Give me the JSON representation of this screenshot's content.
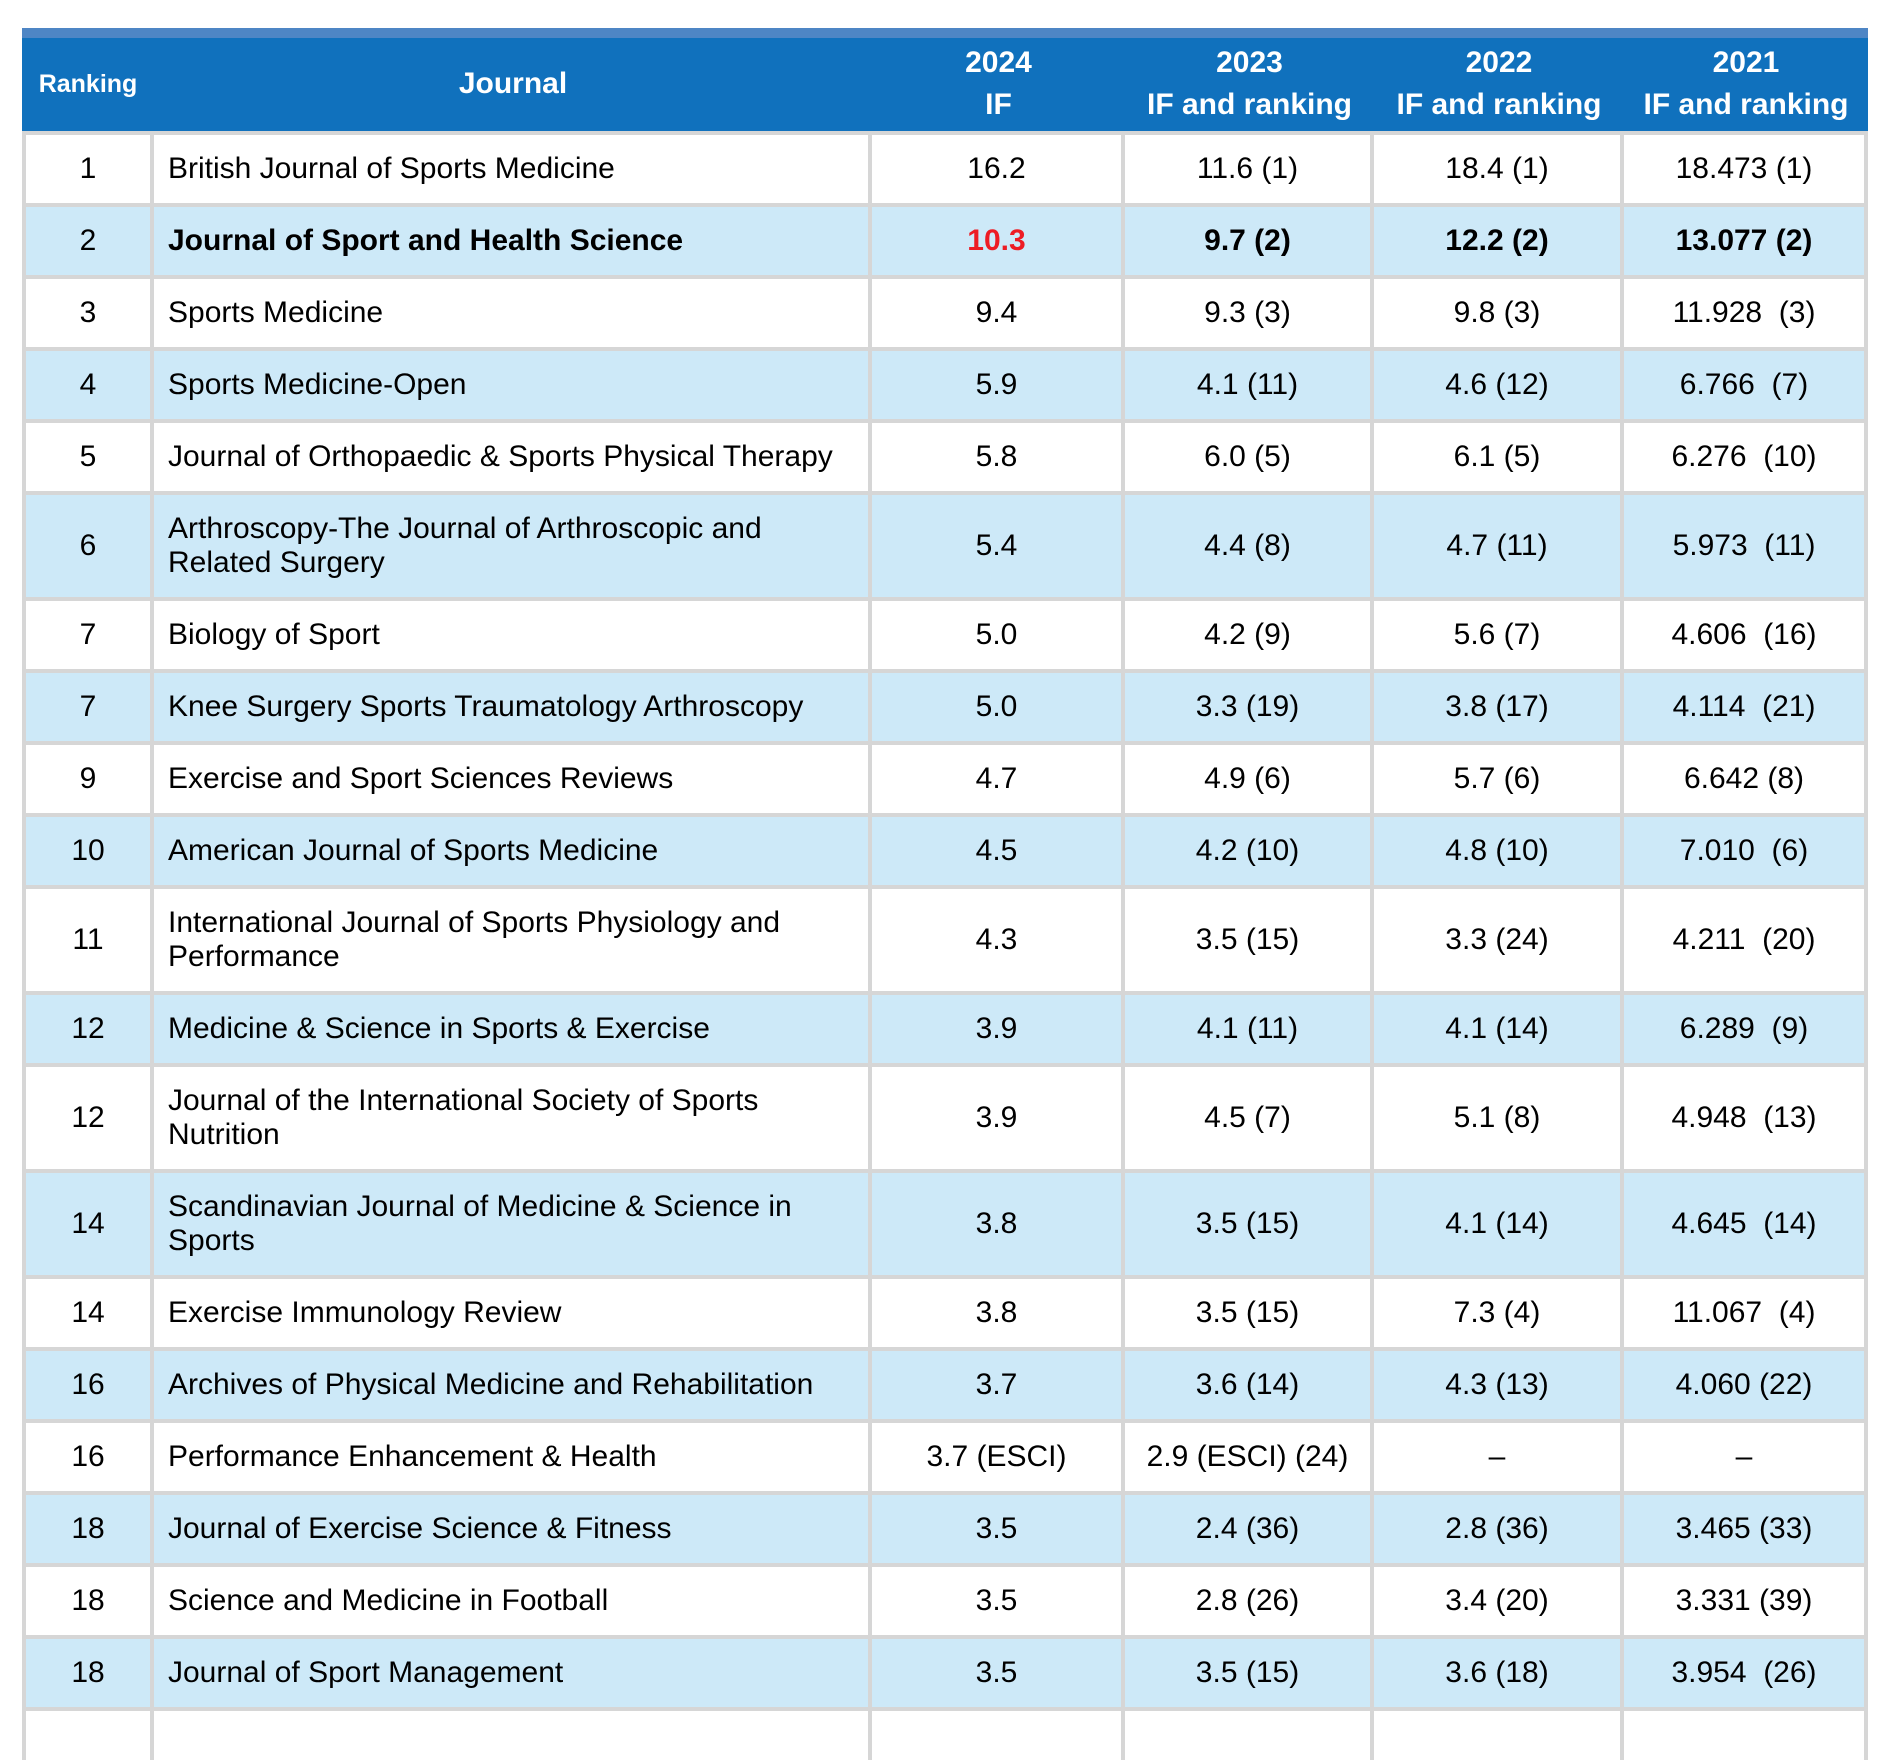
{
  "table": {
    "columns": [
      {
        "line1": "Ranking",
        "line2": ""
      },
      {
        "line1": "Journal",
        "line2": ""
      },
      {
        "line1": "2024",
        "line2": "IF"
      },
      {
        "line1": "2023",
        "line2": "IF and ranking"
      },
      {
        "line1": "2022",
        "line2": "IF and ranking"
      },
      {
        "line1": "2021",
        "line2": "IF and ranking"
      }
    ],
    "rows": [
      {
        "ranking": "1",
        "journal": "British Journal of Sports Medicine",
        "if2024": "16.2",
        "if2023": "11.6 (1)",
        "if2022": "18.4 (1)",
        "if2021": "18.473 (1)",
        "accent": false
      },
      {
        "ranking": "2",
        "journal": "Journal of Sport and Health Science",
        "if2024": "10.3",
        "if2023": "9.7 (2)",
        "if2022": "12.2 (2)",
        "if2021": "13.077 (2)",
        "accent": true
      },
      {
        "ranking": "3",
        "journal": "Sports Medicine",
        "if2024": "9.4",
        "if2023": "9.3 (3)",
        "if2022": "9.8 (3)",
        "if2021": "11.928  (3)",
        "accent": false
      },
      {
        "ranking": "4",
        "journal": "Sports Medicine-Open",
        "if2024": "5.9",
        "if2023": "4.1 (11)",
        "if2022": "4.6 (12)",
        "if2021": "6.766  (7)",
        "accent": false
      },
      {
        "ranking": "5",
        "journal": "Journal of Orthopaedic & Sports Physical Therapy",
        "if2024": "5.8",
        "if2023": "6.0 (5)",
        "if2022": "6.1 (5)",
        "if2021": "6.276  (10)",
        "accent": false
      },
      {
        "ranking": "6",
        "journal": "Arthroscopy-The Journal of Arthroscopic and Related Surgery",
        "if2024": "5.4",
        "if2023": "4.4 (8)",
        "if2022": "4.7 (11)",
        "if2021": "5.973  (11)",
        "accent": false
      },
      {
        "ranking": "7",
        "journal": "Biology of Sport",
        "if2024": "5.0",
        "if2023": "4.2 (9)",
        "if2022": "5.6 (7)",
        "if2021": "4.606  (16)",
        "accent": false
      },
      {
        "ranking": "7",
        "journal": "Knee Surgery Sports Traumatology Arthroscopy",
        "if2024": "5.0",
        "if2023": "3.3 (19)",
        "if2022": "3.8 (17)",
        "if2021": "4.114  (21)",
        "accent": false
      },
      {
        "ranking": "9",
        "journal": "Exercise and Sport Sciences Reviews",
        "if2024": "4.7",
        "if2023": "4.9 (6)",
        "if2022": "5.7 (6)",
        "if2021": "6.642 (8)",
        "accent": false
      },
      {
        "ranking": "10",
        "journal": "American Journal of Sports Medicine",
        "if2024": "4.5",
        "if2023": "4.2 (10)",
        "if2022": "4.8 (10)",
        "if2021": "7.010  (6)",
        "accent": false
      },
      {
        "ranking": "11",
        "journal": "International Journal of Sports Physiology and Performance",
        "if2024": "4.3",
        "if2023": "3.5 (15)",
        "if2022": "3.3 (24)",
        "if2021": "4.211  (20)",
        "accent": false
      },
      {
        "ranking": "12",
        "journal": "Medicine & Science in Sports & Exercise",
        "if2024": "3.9",
        "if2023": "4.1 (11)",
        "if2022": "4.1 (14)",
        "if2021": "6.289  (9)",
        "accent": false
      },
      {
        "ranking": "12",
        "journal": "Journal of the International Society of Sports Nutrition",
        "if2024": "3.9",
        "if2023": "4.5 (7)",
        "if2022": "5.1 (8)",
        "if2021": "4.948  (13)",
        "accent": false
      },
      {
        "ranking": "14",
        "journal": "Scandinavian Journal of Medicine & Science in Sports",
        "if2024": "3.8",
        "if2023": "3.5 (15)",
        "if2022": "4.1 (14)",
        "if2021": "4.645  (14)",
        "accent": false
      },
      {
        "ranking": "14",
        "journal": "Exercise Immunology Review",
        "if2024": "3.8",
        "if2023": "3.5 (15)",
        "if2022": "7.3 (4)",
        "if2021": "11.067  (4)",
        "accent": false
      },
      {
        "ranking": "16",
        "journal": "Archives of Physical Medicine and Rehabilitation",
        "if2024": "3.7",
        "if2023": "3.6 (14)",
        "if2022": "4.3 (13)",
        "if2021": "4.060 (22)",
        "accent": false
      },
      {
        "ranking": "16",
        "journal": "Performance Enhancement & Health",
        "if2024": "3.7 (ESCI)",
        "if2023": "2.9 (ESCI) (24)",
        "if2022": "–",
        "if2021": "–",
        "accent": false
      },
      {
        "ranking": "18",
        "journal": "Journal of Exercise Science & Fitness",
        "if2024": "3.5",
        "if2023": "2.4 (36)",
        "if2022": "2.8 (36)",
        "if2021": "3.465 (33)",
        "accent": false
      },
      {
        "ranking": "18",
        "journal": "Science and Medicine in Football",
        "if2024": "3.5",
        "if2023": "2.8 (26)",
        "if2022": "3.4 (20)",
        "if2021": "3.331 (39)",
        "accent": false
      },
      {
        "ranking": "18",
        "journal": "Journal of Sport Management",
        "if2024": "3.5",
        "if2023": "3.5 (15)",
        "if2022": "3.6 (18)",
        "if2021": "3.954  (26)",
        "accent": false
      }
    ],
    "has_partial_next_row": true,
    "colors": {
      "header_background": "#1071BD",
      "header_top_strip": "#4E86C5",
      "header_text": "#FFFFFF",
      "row_background": "#FFFFFF",
      "row_alternate_background": "#CDE9F8",
      "grid_line": "#D6D6D6",
      "accent_value_red": "#ED1C24",
      "body_text": "#000000"
    }
  }
}
